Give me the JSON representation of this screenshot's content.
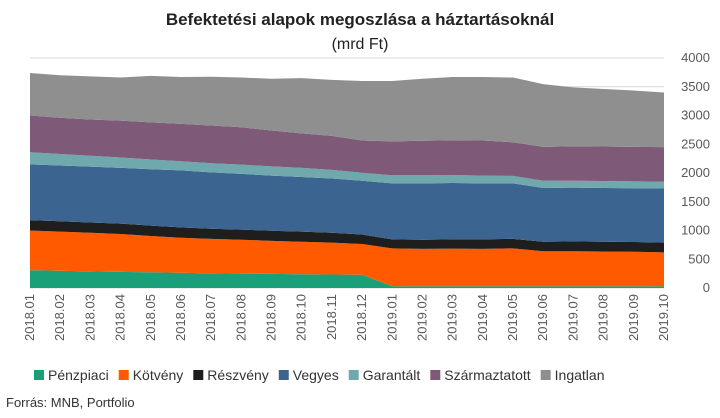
{
  "chart_data": {
    "type": "area",
    "stacked": true,
    "title": "Befektetési alapok megoszlása a háztartásoknál",
    "subtitle": "(mrd Ft)",
    "source": "Forrás: MNB, Portfolio",
    "x": [
      "2018.01",
      "2018.02",
      "2018.03",
      "2018.04",
      "2018.05",
      "2018.06",
      "2018.07",
      "2018.08",
      "2018.09",
      "2018.10",
      "2018.11",
      "2018.12",
      "2019.01",
      "2019.02",
      "2019.03",
      "2019.04",
      "2019.05",
      "2019.06",
      "2019.07",
      "2019.08",
      "2019.09",
      "2019.10"
    ],
    "y_ticks": [
      0,
      500,
      1000,
      1500,
      2000,
      2500,
      3000,
      3500,
      4000
    ],
    "ylim": [
      0,
      4000
    ],
    "grid": true,
    "legend_position": "bottom",
    "series": [
      {
        "name": "Pénzpiaci",
        "color": "#1aa078",
        "values": [
          310,
          300,
          290,
          280,
          275,
          265,
          255,
          250,
          245,
          240,
          235,
          230,
          30,
          30,
          30,
          30,
          30,
          30,
          30,
          30,
          30,
          30
        ]
      },
      {
        "name": "Kötvény",
        "color": "#ff5a00",
        "values": [
          690,
          680,
          670,
          660,
          630,
          610,
          600,
          590,
          575,
          565,
          555,
          535,
          660,
          650,
          655,
          650,
          660,
          610,
          610,
          605,
          600,
          590
        ]
      },
      {
        "name": "Részvény",
        "color": "#1e1e1e",
        "values": [
          180,
          180,
          180,
          180,
          180,
          180,
          175,
          175,
          175,
          175,
          170,
          165,
          155,
          160,
          160,
          165,
          165,
          165,
          170,
          170,
          170,
          170
        ]
      },
      {
        "name": "Vegyes",
        "color": "#3c6491",
        "values": [
          970,
          970,
          970,
          970,
          980,
          990,
          980,
          970,
          960,
          950,
          945,
          935,
          975,
          980,
          980,
          975,
          965,
          935,
          935,
          935,
          935,
          940
        ]
      },
      {
        "name": "Garantált",
        "color": "#70a9ad",
        "values": [
          210,
          200,
          190,
          180,
          170,
          160,
          160,
          160,
          160,
          160,
          150,
          140,
          140,
          140,
          140,
          135,
          130,
          125,
          120,
          120,
          120,
          120
        ]
      },
      {
        "name": "Származtatott",
        "color": "#7f5a78",
        "values": [
          640,
          630,
          630,
          640,
          645,
          650,
          655,
          650,
          625,
          600,
          590,
          560,
          590,
          600,
          605,
          610,
          585,
          590,
          600,
          600,
          600,
          600
        ]
      },
      {
        "name": "Ingatlan",
        "color": "#8f8f8f",
        "values": [
          740,
          740,
          750,
          750,
          810,
          815,
          850,
          865,
          900,
          960,
          975,
          1035,
          1050,
          1080,
          1100,
          1105,
          1125,
          1090,
          1025,
          1000,
          980,
          950
        ]
      }
    ]
  }
}
